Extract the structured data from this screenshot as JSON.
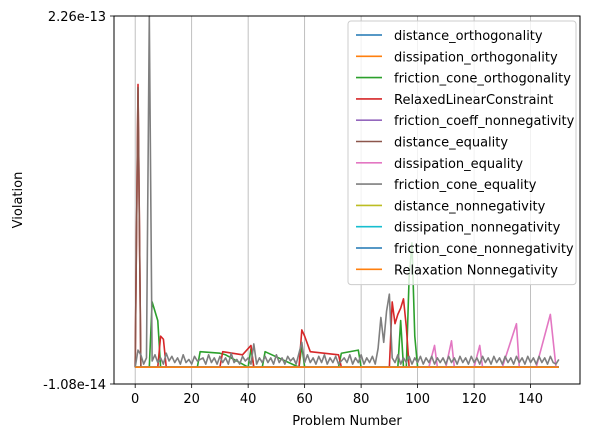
{
  "chart_data": {
    "type": "line",
    "title": "",
    "xlabel": "Problem Number",
    "ylabel": "Violation",
    "xlim": [
      -7.5,
      157.5
    ],
    "ylim": [
      -1.08e-14,
      2.26e-13
    ],
    "x_ticks": [
      0,
      20,
      40,
      60,
      80,
      100,
      120,
      140
    ],
    "x_tick_labels": [
      "0",
      "20",
      "40",
      "60",
      "80",
      "100",
      "120",
      "140"
    ],
    "y_ticks": [
      -1.08e-14,
      2.26e-13
    ],
    "y_tick_labels": [
      "-1.08e-14",
      "2.26e-13"
    ],
    "grid": "vertical",
    "legend_position": "top-right",
    "series": [
      {
        "name": "distance_orthogonality",
        "color": "#1f77b4",
        "points": [
          [
            0,
            0
          ],
          [
            150,
            0
          ]
        ]
      },
      {
        "name": "dissipation_orthogonality",
        "color": "#ff7f0e",
        "points": [
          [
            0,
            0
          ],
          [
            150,
            0
          ]
        ]
      },
      {
        "name": "friction_cone_orthogonality",
        "color": "#2ca02c",
        "points": [
          [
            0,
            0
          ],
          [
            5,
            0
          ],
          [
            6,
            4.2e-14
          ],
          [
            7,
            3.6e-14
          ],
          [
            8,
            3e-14
          ],
          [
            9,
            0
          ],
          [
            22,
            0
          ],
          [
            23,
            1e-14
          ],
          [
            30,
            9e-15
          ],
          [
            32,
            8e-15
          ],
          [
            40,
            0
          ],
          [
            41,
            1.2e-14
          ],
          [
            42,
            0
          ],
          [
            45,
            0
          ],
          [
            46,
            1e-14
          ],
          [
            58,
            0
          ],
          [
            59,
            1.4e-14
          ],
          [
            60,
            0
          ],
          [
            72,
            0
          ],
          [
            73,
            9e-15
          ],
          [
            79,
            1.1e-14
          ],
          [
            80,
            0
          ],
          [
            93,
            0
          ],
          [
            94,
            3e-14
          ],
          [
            95,
            0
          ],
          [
            96,
            0
          ],
          [
            97,
            5.8e-14
          ],
          [
            98,
            8e-14
          ],
          [
            99,
            2e-14
          ],
          [
            100,
            0
          ],
          [
            150,
            0
          ]
        ]
      },
      {
        "name": "RelaxedLinearConstraint",
        "color": "#d62728",
        "points": [
          [
            0,
            0
          ],
          [
            1,
            1.82e-13
          ],
          [
            2,
            0
          ],
          [
            8,
            0
          ],
          [
            9,
            2e-14
          ],
          [
            10,
            1.8e-14
          ],
          [
            11,
            0
          ],
          [
            30,
            0
          ],
          [
            31,
            1e-14
          ],
          [
            38,
            8e-15
          ],
          [
            39,
            1e-14
          ],
          [
            41,
            1.4e-14
          ],
          [
            42,
            0
          ],
          [
            58,
            0
          ],
          [
            59,
            2.4e-14
          ],
          [
            60,
            2e-14
          ],
          [
            62,
            1e-14
          ],
          [
            72,
            8e-15
          ],
          [
            73,
            0
          ],
          [
            90,
            0
          ],
          [
            91,
            4.2e-14
          ],
          [
            92,
            2.8e-14
          ],
          [
            93,
            3.4e-14
          ],
          [
            94,
            3.8e-14
          ],
          [
            95,
            4.4e-14
          ],
          [
            96,
            2.6e-14
          ],
          [
            97,
            0
          ],
          [
            150,
            0
          ]
        ]
      },
      {
        "name": "friction_coeff_nonnegativity",
        "color": "#9467bd",
        "points": [
          [
            0,
            0
          ],
          [
            150,
            0
          ]
        ]
      },
      {
        "name": "distance_equality",
        "color": "#8c564b",
        "points": [
          [
            0,
            0
          ],
          [
            1,
            1.8e-13
          ],
          [
            2,
            0
          ],
          [
            150,
            0
          ]
        ]
      },
      {
        "name": "dissipation_equality",
        "color": "#e377c2",
        "points": [
          [
            0,
            0
          ],
          [
            104,
            0
          ],
          [
            106,
            1.4e-14
          ],
          [
            107,
            0
          ],
          [
            110,
            0
          ],
          [
            112,
            1.7e-14
          ],
          [
            113,
            0
          ],
          [
            120,
            0
          ],
          [
            122,
            1.4e-14
          ],
          [
            123,
            0
          ],
          [
            130,
            0
          ],
          [
            135,
            2.8e-14
          ],
          [
            136,
            0
          ],
          [
            142,
            0
          ],
          [
            147,
            3.4e-14
          ],
          [
            149,
            0
          ],
          [
            150,
            0
          ]
        ]
      },
      {
        "name": "friction_cone_equality",
        "color": "#7f7f7f",
        "points": [
          [
            0,
            0
          ],
          [
            1,
            1.1e-14
          ],
          [
            2,
            8e-15
          ],
          [
            3,
            2e-15
          ],
          [
            4,
            6e-15
          ],
          [
            5,
            2.26e-13
          ],
          [
            6,
            4e-15
          ],
          [
            7,
            8e-15
          ],
          [
            8,
            3e-15
          ],
          [
            9,
            6e-15
          ],
          [
            10,
            2e-15
          ],
          [
            11,
            9e-15
          ],
          [
            12,
            4e-15
          ],
          [
            13,
            7e-15
          ],
          [
            14,
            3e-15
          ],
          [
            15,
            6e-15
          ],
          [
            16,
            2e-15
          ],
          [
            17,
            8e-15
          ],
          [
            18,
            3e-15
          ],
          [
            19,
            5e-15
          ],
          [
            20,
            2e-15
          ],
          [
            21,
            7e-15
          ],
          [
            22,
            4e-15
          ],
          [
            24,
            6e-15
          ],
          [
            25,
            2e-15
          ],
          [
            26,
            8e-15
          ],
          [
            27,
            3e-15
          ],
          [
            28,
            6e-15
          ],
          [
            29,
            2e-15
          ],
          [
            30,
            7e-15
          ],
          [
            31,
            3e-15
          ],
          [
            32,
            6e-15
          ],
          [
            33,
            2e-15
          ],
          [
            34,
            9e-15
          ],
          [
            35,
            3e-15
          ],
          [
            36,
            5e-15
          ],
          [
            37,
            2e-15
          ],
          [
            38,
            7e-15
          ],
          [
            39,
            4e-15
          ],
          [
            40,
            6e-15
          ],
          [
            41,
            2e-15
          ],
          [
            42,
            1.5e-14
          ],
          [
            43,
            2e-15
          ],
          [
            44,
            6e-15
          ],
          [
            45,
            3e-15
          ],
          [
            46,
            7e-15
          ],
          [
            47,
            3e-15
          ],
          [
            48,
            6e-15
          ],
          [
            49,
            2e-15
          ],
          [
            50,
            8e-15
          ],
          [
            51,
            3e-15
          ],
          [
            52,
            6e-15
          ],
          [
            53,
            2e-15
          ],
          [
            54,
            7e-15
          ],
          [
            55,
            4e-15
          ],
          [
            56,
            6e-15
          ],
          [
            57,
            2e-15
          ],
          [
            58,
            9e-15
          ],
          [
            59,
            1.6e-14
          ],
          [
            60,
            3e-15
          ],
          [
            61,
            8e-15
          ],
          [
            62,
            3e-15
          ],
          [
            63,
            6e-15
          ],
          [
            64,
            2e-15
          ],
          [
            65,
            7e-15
          ],
          [
            66,
            3e-15
          ],
          [
            67,
            8e-15
          ],
          [
            68,
            2e-15
          ],
          [
            69,
            6e-15
          ],
          [
            70,
            3e-15
          ],
          [
            71,
            7e-15
          ],
          [
            72,
            2e-15
          ],
          [
            74,
            6e-15
          ],
          [
            75,
            3e-15
          ],
          [
            76,
            8e-15
          ],
          [
            77,
            2e-15
          ],
          [
            78,
            6e-15
          ],
          [
            79,
            3e-15
          ],
          [
            80,
            8e-15
          ],
          [
            81,
            2e-15
          ],
          [
            82,
            6e-15
          ],
          [
            83,
            3e-15
          ],
          [
            84,
            7e-15
          ],
          [
            85,
            2e-15
          ],
          [
            86,
            1.2e-14
          ],
          [
            87,
            3.2e-14
          ],
          [
            88,
            1.6e-14
          ],
          [
            89,
            3.6e-14
          ],
          [
            90,
            4.7e-14
          ],
          [
            91,
            6e-15
          ],
          [
            92,
            3e-15
          ],
          [
            93,
            8e-15
          ],
          [
            94,
            2e-15
          ],
          [
            95,
            6e-15
          ],
          [
            96,
            3e-15
          ],
          [
            97,
            7e-15
          ],
          [
            98,
            2e-15
          ],
          [
            99,
            6e-15
          ],
          [
            100,
            3e-15
          ],
          [
            101,
            7e-15
          ],
          [
            102,
            2e-15
          ],
          [
            103,
            6e-15
          ],
          [
            104,
            3e-15
          ],
          [
            105,
            7e-15
          ],
          [
            106,
            2e-15
          ],
          [
            107,
            6e-15
          ],
          [
            108,
            3e-15
          ],
          [
            109,
            6e-15
          ],
          [
            110,
            2e-15
          ],
          [
            111,
            7e-15
          ],
          [
            112,
            3e-15
          ],
          [
            113,
            6e-15
          ],
          [
            114,
            2e-15
          ],
          [
            115,
            7e-15
          ],
          [
            116,
            3e-15
          ],
          [
            117,
            6e-15
          ],
          [
            118,
            2e-15
          ],
          [
            119,
            7e-15
          ],
          [
            120,
            3e-15
          ],
          [
            121,
            6e-15
          ],
          [
            122,
            2e-15
          ],
          [
            123,
            7e-15
          ],
          [
            124,
            3e-15
          ],
          [
            125,
            6e-15
          ],
          [
            126,
            2e-15
          ],
          [
            127,
            7e-15
          ],
          [
            128,
            3e-15
          ],
          [
            129,
            6e-15
          ],
          [
            130,
            2e-15
          ],
          [
            131,
            7e-15
          ],
          [
            132,
            3e-15
          ],
          [
            133,
            6e-15
          ],
          [
            134,
            2e-15
          ],
          [
            135,
            7e-15
          ],
          [
            136,
            3e-15
          ],
          [
            137,
            6e-15
          ],
          [
            138,
            2e-15
          ],
          [
            139,
            7e-15
          ],
          [
            140,
            3e-15
          ],
          [
            141,
            6e-15
          ],
          [
            142,
            2e-15
          ],
          [
            143,
            7e-15
          ],
          [
            144,
            3e-15
          ],
          [
            145,
            6e-15
          ],
          [
            146,
            2e-15
          ],
          [
            147,
            7e-15
          ],
          [
            148,
            3e-15
          ],
          [
            149,
            2e-15
          ],
          [
            150,
            5e-15
          ]
        ]
      },
      {
        "name": "distance_nonnegativity",
        "color": "#bcbd22",
        "points": [
          [
            0,
            0
          ],
          [
            150,
            0
          ]
        ]
      },
      {
        "name": "dissipation_nonnegativity",
        "color": "#17becf",
        "points": [
          [
            0,
            0
          ],
          [
            150,
            0
          ]
        ]
      },
      {
        "name": "friction_cone_nonnegativity",
        "color": "#1f77b4",
        "points": [
          [
            0,
            0
          ],
          [
            150,
            0
          ]
        ]
      },
      {
        "name": "Relaxation Nonnegativity",
        "color": "#ff7f0e",
        "points": [
          [
            0,
            0
          ],
          [
            150,
            0
          ]
        ]
      }
    ]
  }
}
